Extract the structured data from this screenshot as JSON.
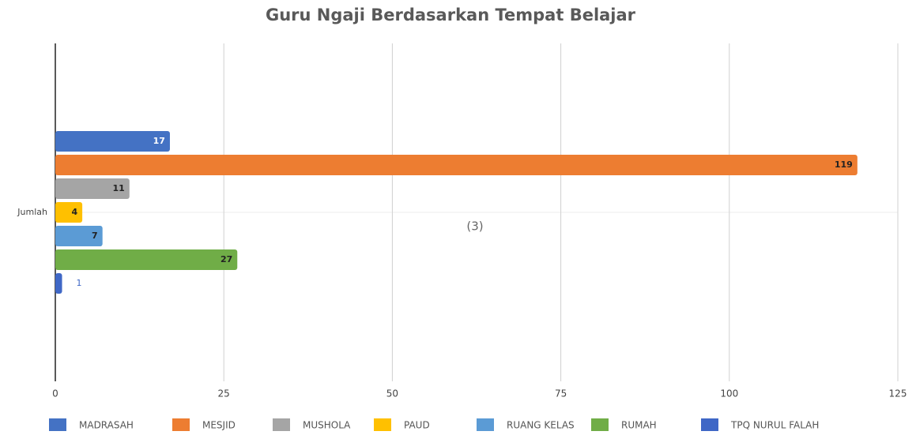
{
  "chart_data": {
    "type": "bar",
    "orientation": "horizontal",
    "title": "Guru Ngaji Berdasarkan Tempat Belajar",
    "annotation": "(3)",
    "categories": [
      "Jumlah"
    ],
    "series": [
      {
        "name": "MADRASAH",
        "color": "#4472c4",
        "values": [
          17
        ]
      },
      {
        "name": "MESJID",
        "color": "#ed7d31",
        "values": [
          119
        ]
      },
      {
        "name": "MUSHOLA",
        "color": "#a5a5a5",
        "values": [
          11
        ]
      },
      {
        "name": "PAUD",
        "color": "#ffc000",
        "values": [
          4
        ]
      },
      {
        "name": "RUANG KELAS",
        "color": "#5b9bd5",
        "values": [
          7
        ]
      },
      {
        "name": "RUMAH",
        "color": "#70ad47",
        "values": [
          27
        ]
      },
      {
        "name": "TPQ NURUL FALAH",
        "color": "#3f67c6",
        "values": [
          1
        ]
      }
    ],
    "xlim": [
      0,
      125
    ],
    "xticks": [
      0,
      25,
      50,
      75,
      100,
      125
    ],
    "grid": true,
    "legend": "bottom"
  }
}
